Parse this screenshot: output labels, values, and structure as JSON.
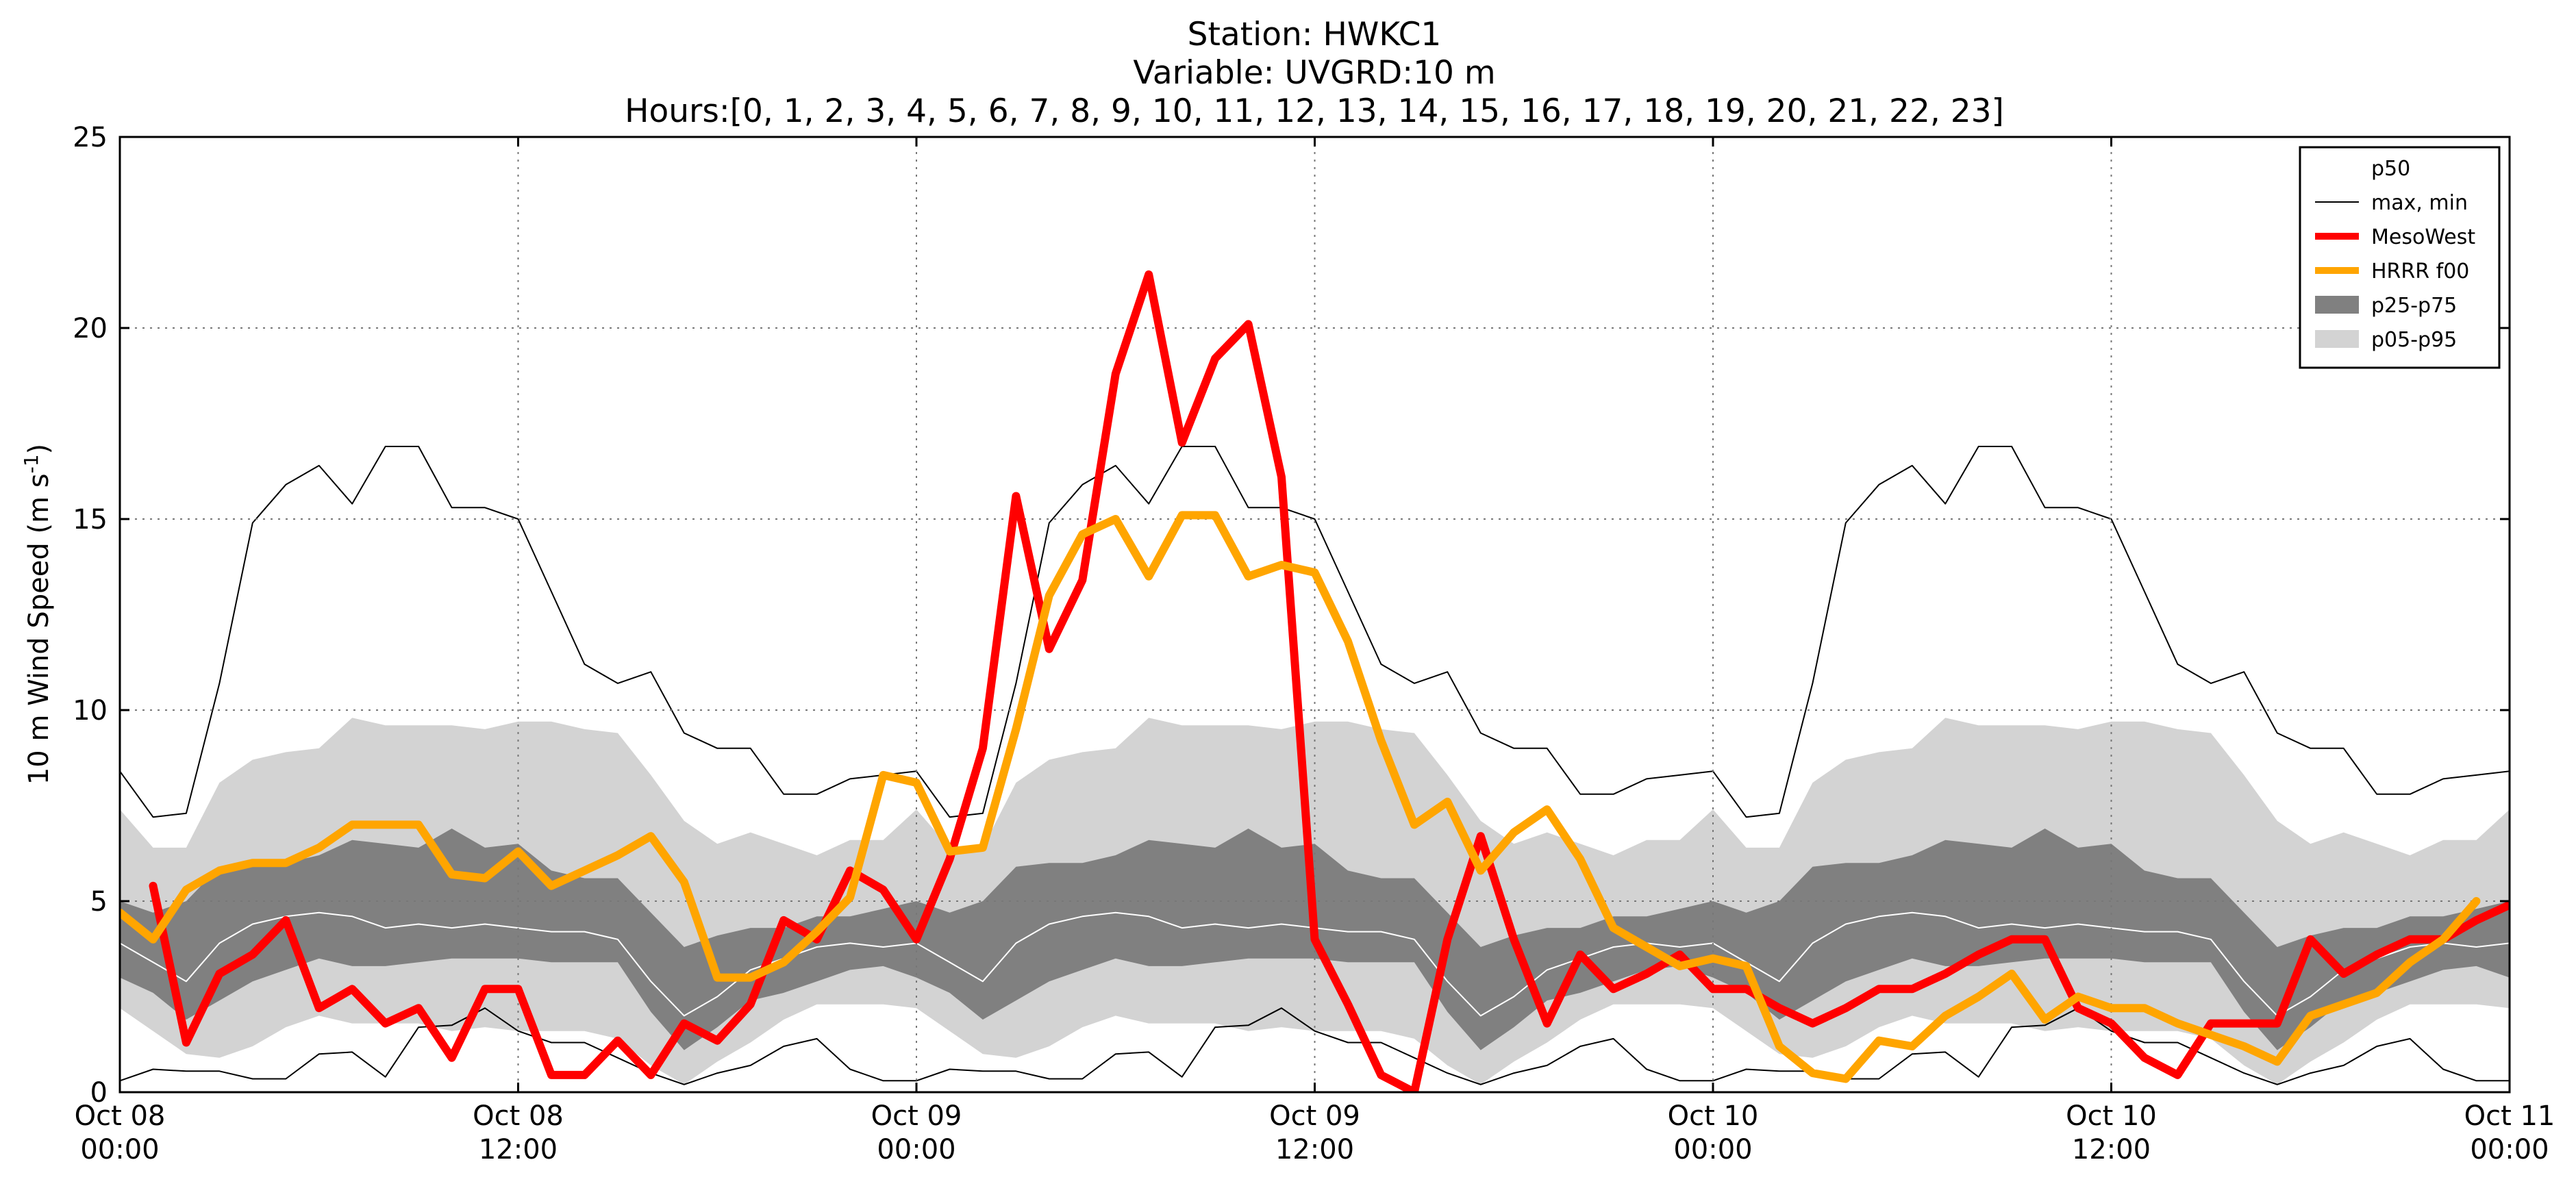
{
  "chart_data": {
    "type": "line",
    "title": [
      "Station: HWKC1",
      "Variable: UVGRD:10 m",
      "Hours:[0, 1, 2, 3, 4, 5, 6, 7, 8, 9, 10, 11, 12, 13, 14, 15, 16, 17, 18, 19, 20, 21, 22, 23]"
    ],
    "ylabel": "10 m Wind Speed (m s",
    "ylabel_sup": "-1",
    "ylabel_end": ")",
    "xlabel": "",
    "x_unit": "hours from Oct 08 00:00",
    "xlim": [
      0,
      72
    ],
    "ylim": [
      0,
      25
    ],
    "yticks": [
      0,
      5,
      10,
      15,
      20,
      25
    ],
    "xticks": [
      {
        "x": 0,
        "line1": "Oct 08",
        "line2": "00:00"
      },
      {
        "x": 12,
        "line1": "Oct 08",
        "line2": "12:00"
      },
      {
        "x": 24,
        "line1": "Oct 09",
        "line2": "00:00"
      },
      {
        "x": 36,
        "line1": "Oct 09",
        "line2": "12:00"
      },
      {
        "x": 48,
        "line1": "Oct 10",
        "line2": "00:00"
      },
      {
        "x": 60,
        "line1": "Oct 10",
        "line2": "12:00"
      },
      {
        "x": 72,
        "line1": "Oct 11",
        "line2": "00:00"
      }
    ],
    "grid": true,
    "legend_position": "top-right",
    "legend": [
      {
        "label": "p50",
        "kind": "line",
        "color": "#ffffff",
        "width": 2
      },
      {
        "label": "max, min",
        "kind": "line",
        "color": "#000000",
        "width": 2
      },
      {
        "label": "MesoWest",
        "kind": "line",
        "color": "#ff0000",
        "width": 10
      },
      {
        "label": "HRRR f00",
        "kind": "line",
        "color": "#ffa500",
        "width": 10
      },
      {
        "label": "p25-p75",
        "kind": "patch",
        "color": "#808080"
      },
      {
        "label": "p05-p95",
        "kind": "patch",
        "color": "#d3d3d3"
      }
    ],
    "climatology_hours": [
      0,
      1,
      2,
      3,
      4,
      5,
      6,
      7,
      8,
      9,
      10,
      11,
      12,
      13,
      14,
      15,
      16,
      17,
      18,
      19,
      20,
      21,
      22,
      23,
      24
    ],
    "climatology": {
      "max": [
        8.4,
        7.2,
        7.3,
        10.7,
        14.9,
        15.9,
        16.4,
        15.4,
        16.9,
        16.9,
        15.3,
        15.3,
        15.0,
        13.1,
        11.2,
        10.7,
        11.0,
        9.4,
        9.0,
        9.0,
        7.8,
        7.8,
        8.2,
        8.3,
        8.4
      ],
      "min": [
        0.3,
        0.6,
        0.55,
        0.55,
        0.35,
        0.35,
        1.0,
        1.05,
        0.4,
        1.7,
        1.75,
        2.2,
        1.6,
        1.3,
        1.3,
        0.9,
        0.5,
        0.2,
        0.5,
        0.7,
        1.2,
        1.4,
        0.6,
        0.3,
        0.3
      ],
      "p50": [
        3.9,
        3.4,
        2.9,
        3.9,
        4.4,
        4.6,
        4.7,
        4.6,
        4.3,
        4.4,
        4.3,
        4.4,
        4.3,
        4.2,
        4.2,
        4.0,
        2.9,
        2.0,
        2.5,
        3.2,
        3.5,
        3.8,
        3.9,
        3.8,
        3.9
      ],
      "p25": [
        3.0,
        2.6,
        1.9,
        2.4,
        2.9,
        3.2,
        3.5,
        3.3,
        3.3,
        3.4,
        3.5,
        3.5,
        3.5,
        3.4,
        3.4,
        3.4,
        2.1,
        1.1,
        1.7,
        2.4,
        2.6,
        2.9,
        3.2,
        3.3,
        3.0
      ],
      "p75": [
        5.0,
        4.7,
        5.0,
        5.9,
        6.0,
        6.0,
        6.2,
        6.6,
        6.5,
        6.4,
        6.9,
        6.4,
        6.5,
        5.8,
        5.6,
        5.6,
        4.7,
        3.8,
        4.1,
        4.3,
        4.3,
        4.6,
        4.6,
        4.8,
        5.0
      ],
      "p05": [
        2.2,
        1.6,
        1.0,
        0.9,
        1.2,
        1.7,
        2.0,
        1.8,
        1.8,
        1.8,
        1.6,
        1.7,
        1.6,
        1.6,
        1.6,
        1.4,
        0.7,
        0.2,
        0.8,
        1.3,
        1.9,
        2.3,
        2.3,
        2.3,
        2.2
      ],
      "p95": [
        7.4,
        6.4,
        6.4,
        8.1,
        8.7,
        8.9,
        9.0,
        9.8,
        9.6,
        9.6,
        9.6,
        9.5,
        9.7,
        9.7,
        9.5,
        9.4,
        8.3,
        7.1,
        6.5,
        6.8,
        6.5,
        6.2,
        6.6,
        6.6,
        7.4
      ]
    },
    "series": [
      {
        "name": "MesoWest",
        "color": "#ff0000",
        "x": [
          1,
          2,
          3,
          4,
          5,
          6,
          7,
          8,
          9,
          10,
          11,
          12,
          13,
          14,
          15,
          16,
          17,
          18,
          19,
          20,
          21,
          22,
          23,
          24,
          25,
          26,
          27,
          28,
          29,
          30,
          31,
          32,
          33,
          34,
          35,
          36,
          37,
          38,
          39,
          40,
          41,
          42,
          43,
          44,
          45,
          46,
          47,
          48,
          49,
          50,
          51,
          52,
          53,
          54,
          55,
          56,
          57,
          58,
          59,
          60,
          61,
          62,
          63,
          64,
          65,
          66,
          67,
          68,
          69,
          70,
          71,
          72
        ],
        "y": [
          5.4,
          1.3,
          3.1,
          3.6,
          4.5,
          2.2,
          2.7,
          1.8,
          2.2,
          0.9,
          2.7,
          2.7,
          0.45,
          0.45,
          1.35,
          0.45,
          1.8,
          1.35,
          2.3,
          4.5,
          4.0,
          5.8,
          5.3,
          4.0,
          6.1,
          9.0,
          15.6,
          11.6,
          13.4,
          18.8,
          21.4,
          17.0,
          19.2,
          20.1,
          16.1,
          4.0,
          2.3,
          0.45,
          0.0,
          4.0,
          6.7,
          4.0,
          1.8,
          3.6,
          2.7,
          3.1,
          3.6,
          2.7,
          2.7,
          2.2,
          1.8,
          2.2,
          2.7,
          2.7,
          3.1,
          3.6,
          4.0,
          4.0,
          2.2,
          1.8,
          0.9,
          0.45,
          1.8,
          1.8,
          1.8,
          4.0,
          3.1,
          3.6,
          4.0,
          4.0,
          4.5,
          4.9
        ]
      },
      {
        "name": "HRRR f00",
        "color": "#ffa500",
        "x": [
          0,
          1,
          2,
          3,
          4,
          5,
          6,
          7,
          8,
          9,
          10,
          11,
          12,
          13,
          14,
          15,
          16,
          17,
          18,
          19,
          20,
          21,
          22,
          23,
          24,
          25,
          26,
          27,
          28,
          29,
          30,
          31,
          32,
          33,
          34,
          35,
          36,
          37,
          38,
          39,
          40,
          41,
          42,
          43,
          44,
          45,
          46,
          47,
          48,
          49,
          50,
          51,
          52,
          53,
          54,
          55,
          56,
          57,
          58,
          59,
          60,
          61,
          62,
          63,
          64,
          65,
          66,
          67,
          68,
          69,
          70,
          71
        ],
        "y": [
          4.7,
          4.0,
          5.3,
          5.8,
          6.0,
          6.0,
          6.4,
          7.0,
          7.0,
          7.0,
          5.7,
          5.6,
          6.3,
          5.4,
          5.8,
          6.2,
          6.7,
          5.5,
          3.0,
          3.0,
          3.4,
          4.2,
          5.1,
          8.3,
          8.1,
          6.3,
          6.4,
          9.5,
          13.0,
          14.6,
          15.0,
          13.5,
          15.1,
          15.1,
          13.5,
          13.8,
          13.6,
          11.8,
          9.2,
          7.0,
          7.6,
          5.8,
          6.8,
          7.4,
          6.1,
          4.3,
          3.8,
          3.3,
          3.5,
          3.3,
          1.2,
          0.5,
          0.35,
          1.35,
          1.2,
          2.0,
          2.5,
          3.1,
          1.9,
          2.5,
          2.2,
          2.2,
          1.8,
          1.5,
          1.2,
          0.8,
          2.0,
          2.3,
          2.6,
          3.4,
          4.0,
          5.0
        ]
      }
    ]
  }
}
